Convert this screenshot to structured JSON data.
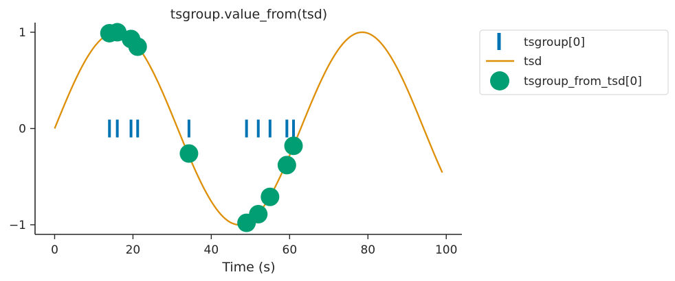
{
  "chart_data": {
    "type": "line",
    "title": "tsgroup.value_from(tsd)",
    "xlabel": "Time (s)",
    "ylabel": "",
    "xlim": [
      -5,
      104
    ],
    "ylim": [
      -1.1,
      1.1
    ],
    "xticks": [
      0,
      20,
      40,
      60,
      80,
      100
    ],
    "xtick_labels": [
      "0",
      "20",
      "40",
      "60",
      "80",
      "100"
    ],
    "yticks": [
      -1,
      0,
      1
    ],
    "ytick_labels": [
      "−1",
      "0",
      "1"
    ],
    "grid": false,
    "legend_position": "outside-top-right",
    "colors": {
      "tsgroup": "#0173b2",
      "tsd": "#de8f05",
      "tsgroup_from_tsd": "#029e73"
    },
    "series": [
      {
        "name": "tsgroup[0]",
        "kind": "event-markers",
        "x": [
          14,
          16,
          19.5,
          21.2,
          34.3,
          49,
          52,
          55,
          59.3,
          61
        ],
        "y": [
          0,
          0,
          0,
          0,
          0,
          0,
          0,
          0,
          0,
          0
        ]
      },
      {
        "name": "tsd",
        "kind": "line",
        "function": "sin(0.1 * t)",
        "x_range": [
          0,
          99
        ],
        "x": [
          0,
          5,
          10,
          15,
          20,
          25,
          30,
          35,
          40,
          45,
          50,
          55,
          60,
          65,
          70,
          75,
          80,
          85,
          90,
          95,
          99
        ],
        "y": [
          0,
          0.48,
          0.84,
          1.0,
          0.91,
          0.6,
          0.14,
          -0.35,
          -0.76,
          -0.98,
          -0.96,
          -0.71,
          -0.28,
          0.22,
          0.66,
          0.94,
          0.99,
          0.8,
          0.41,
          -0.08,
          -0.46
        ]
      },
      {
        "name": "tsgroup_from_tsd[0]",
        "kind": "scatter",
        "x": [
          14,
          16,
          19.5,
          21.2,
          34.3,
          49,
          52,
          55,
          59.3,
          61
        ],
        "y": [
          0.99,
          1.0,
          0.93,
          0.85,
          -0.26,
          -0.98,
          -0.89,
          -0.71,
          -0.38,
          -0.18
        ]
      }
    ],
    "legend": [
      "tsgroup[0]",
      "tsd",
      "tsgroup_from_tsd[0]"
    ]
  }
}
